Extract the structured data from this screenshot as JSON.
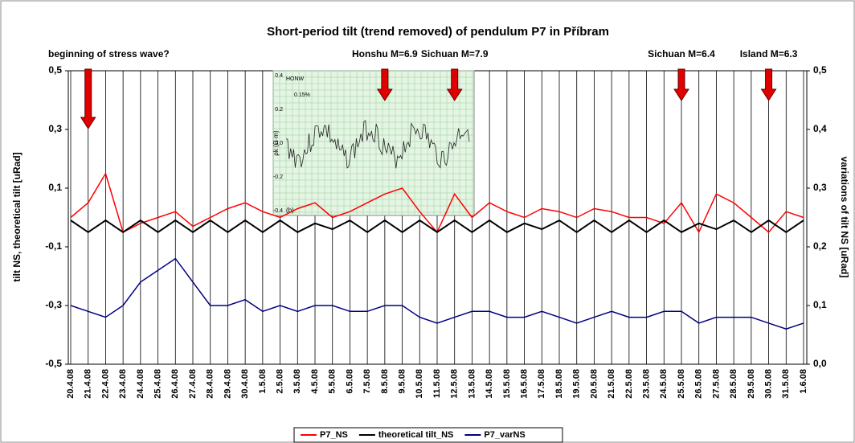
{
  "chart_data": {
    "type": "line",
    "title": "Short-period tilt (trend removed) of pendulum P7 in Příbram",
    "y_label": "tilt NS, theoretical tilt [uRad]",
    "y2_label": "variations of tilt NS [uRad]",
    "categories": [
      "20.4.08",
      "21.4.08",
      "22.4.08",
      "23.4.08",
      "24.4.08",
      "25.4.08",
      "26.4.08",
      "27.4.08",
      "28.4.08",
      "29.4.08",
      "30.4.08",
      "1.5.08",
      "2.5.08",
      "3.5.08",
      "4.5.08",
      "5.5.08",
      "6.5.08",
      "7.5.08",
      "8.5.08",
      "9.5.08",
      "10.5.08",
      "11.5.08",
      "12.5.08",
      "13.5.08",
      "14.5.08",
      "15.5.08",
      "16.5.08",
      "17.5.08",
      "18.5.08",
      "19.5.08",
      "20.5.08",
      "21.5.08",
      "22.5.08",
      "23.5.08",
      "24.5.08",
      "25.5.08",
      "26.5.08",
      "27.5.08",
      "28.5.08",
      "29.5.08",
      "30.5.08",
      "31.5.08",
      "1.6.08"
    ],
    "ylim": [
      -0.5,
      0.5
    ],
    "yticks": [
      {
        "value": -0.5,
        "label": "-0,5"
      },
      {
        "value": -0.3,
        "label": "-0,3"
      },
      {
        "value": -0.1,
        "label": "-0,1"
      },
      {
        "value": 0.1,
        "label": "0,1"
      },
      {
        "value": 0.3,
        "label": "0,3"
      },
      {
        "value": 0.5,
        "label": "0,5"
      }
    ],
    "y2lim": [
      0,
      0.5
    ],
    "y2ticks": [
      {
        "value": 0,
        "label": "0,0"
      },
      {
        "value": 0.1,
        "label": "0,1"
      },
      {
        "value": 0.2,
        "label": "0,2"
      },
      {
        "value": 0.3,
        "label": "0,3"
      },
      {
        "value": 0.4,
        "label": "0,4"
      },
      {
        "value": 0.5,
        "label": "0,5"
      }
    ],
    "x_grid": true,
    "legend": "bottom",
    "series": [
      {
        "name": "P7_NS",
        "color": "#ff0000",
        "values": [
          0.0,
          0.05,
          0.15,
          -0.05,
          -0.02,
          0.0,
          0.02,
          -0.03,
          0.0,
          0.03,
          0.05,
          0.02,
          0.0,
          0.03,
          0.05,
          0.0,
          0.02,
          0.05,
          0.08,
          0.1,
          0.02,
          -0.05,
          0.08,
          0.0,
          0.05,
          0.02,
          0.0,
          0.03,
          0.02,
          0.0,
          0.03,
          0.02,
          0.0,
          0.0,
          -0.02,
          0.05,
          -0.05,
          0.08,
          0.05,
          0.0,
          -0.05,
          0.02,
          0.0
        ]
      },
      {
        "name": "theoretical tilt_NS",
        "color": "#000000",
        "values": [
          -0.01,
          -0.05,
          -0.01,
          -0.05,
          -0.01,
          -0.05,
          -0.01,
          -0.05,
          -0.01,
          -0.05,
          -0.01,
          -0.05,
          -0.01,
          -0.05,
          -0.02,
          -0.04,
          -0.01,
          -0.05,
          -0.01,
          -0.05,
          -0.01,
          -0.05,
          -0.01,
          -0.05,
          -0.01,
          -0.05,
          -0.02,
          -0.04,
          -0.01,
          -0.05,
          -0.01,
          -0.05,
          -0.01,
          -0.05,
          -0.01,
          -0.05,
          -0.02,
          -0.04,
          -0.01,
          -0.05,
          -0.01,
          -0.05,
          -0.01
        ]
      },
      {
        "name": "P7_varNS",
        "color": "#000080",
        "axis": "y2",
        "values": [
          0.1,
          0.09,
          0.08,
          0.1,
          0.14,
          0.16,
          0.18,
          0.14,
          0.1,
          0.1,
          0.11,
          0.09,
          0.1,
          0.09,
          0.1,
          0.1,
          0.09,
          0.09,
          0.1,
          0.1,
          0.08,
          0.07,
          0.08,
          0.09,
          0.09,
          0.08,
          0.08,
          0.09,
          0.08,
          0.07,
          0.08,
          0.09,
          0.08,
          0.08,
          0.09,
          0.09,
          0.07,
          0.08,
          0.08,
          0.08,
          0.07,
          0.06,
          0.07
        ]
      }
    ],
    "annotations": [
      {
        "text": "beginning of stress wave?",
        "at": 1
      },
      {
        "text": "Honshu M=6.9",
        "at": 18
      },
      {
        "text": "Sichuan M=7.9",
        "at": 22
      },
      {
        "text": "Sichuan M=6.4",
        "at": 35
      },
      {
        "text": "Island M=6.3",
        "at": 40
      }
    ],
    "inset": {
      "station": "HONW",
      "scale": "0.15%",
      "panel": "(b)",
      "ylabel": "ρk (Ω·m)",
      "yticks": [
        0.4,
        0.2,
        {
          "value": 0,
          "label": "0.0"
        },
        -0.2,
        -0.4
      ]
    }
  }
}
